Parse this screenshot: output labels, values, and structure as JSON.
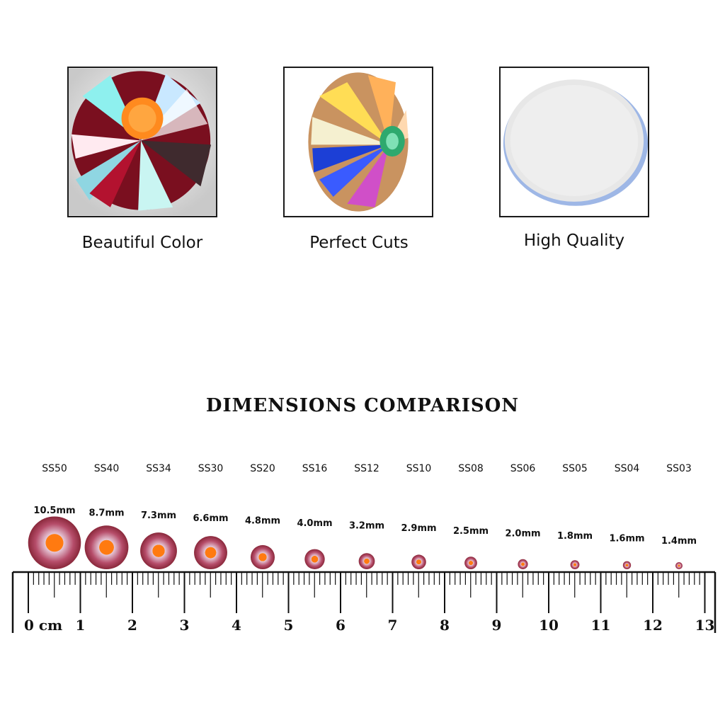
{
  "features": [
    {
      "caption": "Beautiful Color",
      "image": "rhinestone-ab-closeup"
    },
    {
      "caption": "Perfect Cuts",
      "image": "rhinestone-ab-angled"
    },
    {
      "caption": "High Quality",
      "image": "rhinestone-back-glue"
    }
  ],
  "comparison": {
    "title": "DIMENSIONS COMPARISON",
    "sizes": [
      {
        "code": "SS50",
        "mm": "10.5mm",
        "diameter": 10.5
      },
      {
        "code": "SS40",
        "mm": "8.7mm",
        "diameter": 8.7
      },
      {
        "code": "SS34",
        "mm": "7.3mm",
        "diameter": 7.3
      },
      {
        "code": "SS30",
        "mm": "6.6mm",
        "diameter": 6.6
      },
      {
        "code": "SS20",
        "mm": "4.8mm",
        "diameter": 4.8
      },
      {
        "code": "SS16",
        "mm": "4.0mm",
        "diameter": 4.0
      },
      {
        "code": "SS12",
        "mm": "3.2mm",
        "diameter": 3.2
      },
      {
        "code": "SS10",
        "mm": "2.9mm",
        "diameter": 2.9
      },
      {
        "code": "SS08",
        "mm": "2.5mm",
        "diameter": 2.5
      },
      {
        "code": "SS06",
        "mm": "2.0mm",
        "diameter": 2.0
      },
      {
        "code": "SS05",
        "mm": "1.8mm",
        "diameter": 1.8
      },
      {
        "code": "SS04",
        "mm": "1.6mm",
        "diameter": 1.6
      },
      {
        "code": "SS03",
        "mm": "1.4mm",
        "diameter": 1.4
      }
    ],
    "ruler": {
      "zero_label": "0 cm",
      "labels": [
        "1",
        "2",
        "3",
        "4",
        "5",
        "6",
        "7",
        "8",
        "9",
        "10",
        "11",
        "12",
        "13"
      ]
    }
  }
}
